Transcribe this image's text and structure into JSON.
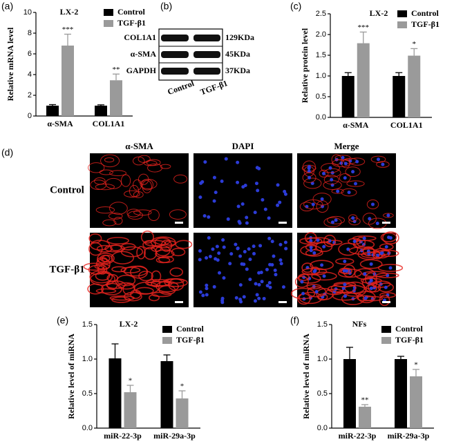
{
  "chart_data": [
    {
      "type": "bar",
      "label": "(a)",
      "title": "LX-2",
      "y_label": "Relative mRNA level",
      "categories": [
        "α-SMA",
        "COL1A1"
      ],
      "ylim": [
        0,
        10
      ],
      "yticks": [
        0,
        2,
        4,
        6,
        8,
        10
      ],
      "series": [
        {
          "name": "Control",
          "color": "#000000",
          "values": [
            1.0,
            1.0
          ],
          "errors": [
            0.1,
            0.08
          ]
        },
        {
          "name": "TGF-β1",
          "color": "#9a9a9a",
          "values": [
            6.8,
            3.45
          ],
          "errors": [
            1.1,
            0.6
          ],
          "significance": [
            "***",
            "**"
          ]
        }
      ]
    },
    {
      "type": "bar",
      "label": "(c)",
      "title": "LX-2",
      "y_label": "Relative protein level",
      "categories": [
        "α-SMA",
        "COL1A1"
      ],
      "ylim": [
        0,
        2.5
      ],
      "yticks": [
        {
          "value": 0,
          "label": "0.0"
        },
        0.5,
        {
          "value": 1,
          "label": "1.0"
        },
        1.5,
        {
          "value": 2,
          "label": "2.0"
        },
        2.5
      ],
      "series": [
        {
          "name": "Control",
          "color": "#000000",
          "values": [
            1.0,
            1.0
          ],
          "errors": [
            0.08,
            0.08
          ]
        },
        {
          "name": "TGF-β1",
          "color": "#9a9a9a",
          "values": [
            1.79,
            1.49
          ],
          "errors": [
            0.27,
            0.17
          ],
          "significance": [
            "***",
            "*"
          ]
        }
      ]
    },
    {
      "type": "bar",
      "label": "(e)",
      "title": "LX-2",
      "y_label": "Relative level of miRNA",
      "categories": [
        "miR-22-3p",
        "miR-29a-3p"
      ],
      "ylim": [
        0,
        1.5
      ],
      "yticks": [
        {
          "value": 0,
          "label": "0.0"
        },
        0.5,
        {
          "value": 1,
          "label": "1.0"
        },
        1.5
      ],
      "series": [
        {
          "name": "Control",
          "color": "#000000",
          "values": [
            1.01,
            0.97
          ],
          "errors": [
            0.21,
            0.09
          ]
        },
        {
          "name": "TGF-β1",
          "color": "#9a9a9a",
          "values": [
            0.52,
            0.43
          ],
          "errors": [
            0.1,
            0.11
          ],
          "significance": [
            "*",
            "*"
          ]
        }
      ]
    },
    {
      "type": "bar",
      "label": "(f)",
      "title": "NFs",
      "y_label": "Relative level of miRNA",
      "categories": [
        "miR-22-3p",
        "miR-29a-3p"
      ],
      "ylim": [
        0,
        1.5
      ],
      "yticks": [
        {
          "value": 0,
          "label": "0.0"
        },
        0.5,
        {
          "value": 1,
          "label": "1.0"
        },
        1.5
      ],
      "series": [
        {
          "name": "Control",
          "color": "#000000",
          "values": [
            1.0,
            1.0
          ],
          "errors": [
            0.17,
            0.04
          ]
        },
        {
          "name": "TGF-β1",
          "color": "#9a9a9a",
          "values": [
            0.31,
            0.75
          ],
          "errors": [
            0.03,
            0.1
          ],
          "significance": [
            "**",
            "*"
          ]
        }
      ]
    }
  ],
  "blot": {
    "label": "(b)",
    "rows": [
      {
        "protein": "COL1A1",
        "size": "129KDa"
      },
      {
        "protein": "α-SMA",
        "size": "45KDa"
      },
      {
        "protein": "GAPDH",
        "size": "37KDa"
      }
    ],
    "lanes": [
      "Control",
      "TGF-β1"
    ]
  },
  "microscopy": {
    "label": "(d)",
    "columns": [
      "α-SMA",
      "DAPI",
      "Merge"
    ],
    "rows": [
      "Control",
      "TGF-β1"
    ]
  }
}
